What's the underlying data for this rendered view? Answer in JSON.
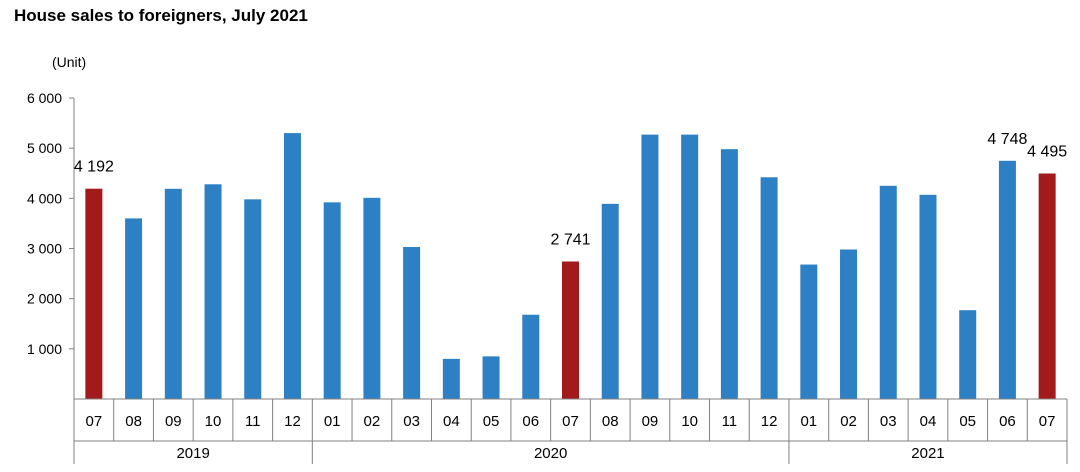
{
  "chart_data": {
    "type": "bar",
    "title": "House sales to foreigners, July 2021",
    "ylabel": "(Unit)",
    "xlabel": "",
    "ylim": [
      0,
      6000
    ],
    "yticks": [
      {
        "value": 1000,
        "label": "1 000"
      },
      {
        "value": 2000,
        "label": "2 000"
      },
      {
        "value": 3000,
        "label": "3 000"
      },
      {
        "value": 4000,
        "label": "4 000"
      },
      {
        "value": 5000,
        "label": "5 000"
      },
      {
        "value": 6000,
        "label": "6 000"
      }
    ],
    "grid": false,
    "legend": "none",
    "colors": {
      "default": "#2E80C4",
      "highlight": "#A31A1C"
    },
    "categories": [
      "07",
      "08",
      "09",
      "10",
      "11",
      "12",
      "01",
      "02",
      "03",
      "04",
      "05",
      "06",
      "07",
      "08",
      "09",
      "10",
      "11",
      "12",
      "01",
      "02",
      "03",
      "04",
      "05",
      "06",
      "07"
    ],
    "year_groups": [
      {
        "label": "2019",
        "count": 6
      },
      {
        "label": "2020",
        "count": 12
      },
      {
        "label": "2021",
        "count": 7
      }
    ],
    "values": [
      4192,
      3600,
      4190,
      4280,
      3980,
      5300,
      3920,
      4010,
      3030,
      800,
      850,
      1680,
      2741,
      3890,
      5270,
      5270,
      4980,
      4420,
      2680,
      2980,
      4250,
      4070,
      1770,
      4748,
      4495
    ],
    "highlight_indices": [
      0,
      12,
      24
    ],
    "data_labels": [
      {
        "index": 0,
        "label": "4 192"
      },
      {
        "index": 12,
        "label": "2 741"
      },
      {
        "index": 23,
        "label": "4 748"
      },
      {
        "index": 24,
        "label": "4 495"
      }
    ]
  }
}
